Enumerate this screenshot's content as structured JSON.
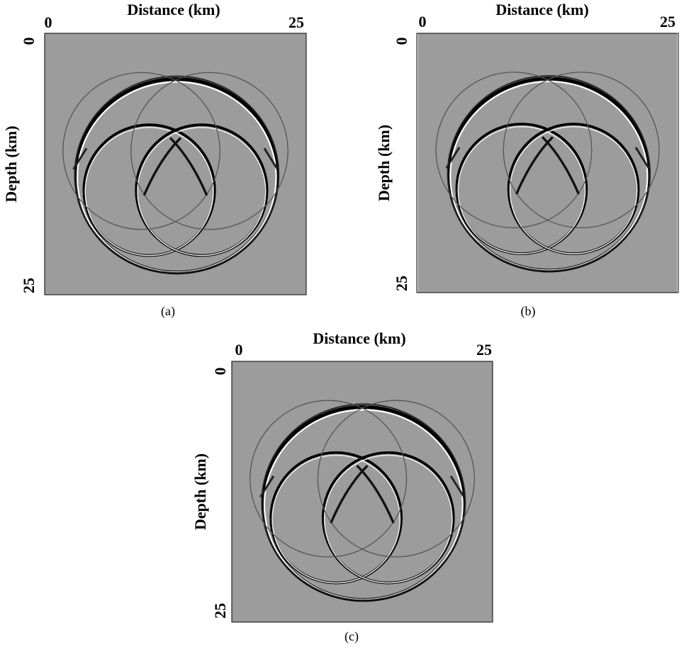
{
  "panels": [
    {
      "x_label": "Distance (km)",
      "y_label": "Depth (km)",
      "xticks": [
        0,
        25
      ],
      "yticks": [
        0,
        25
      ],
      "caption": "(a)"
    },
    {
      "x_label": "Distance (km)",
      "y_label": "Depth (km)",
      "xticks": [
        0,
        25
      ],
      "yticks": [
        0,
        25
      ],
      "caption": "(b)"
    },
    {
      "x_label": "Distance (km)",
      "y_label": "Depth (km)",
      "xticks": [
        0,
        25
      ],
      "yticks": [
        0,
        25
      ],
      "caption": "(c)"
    }
  ]
}
